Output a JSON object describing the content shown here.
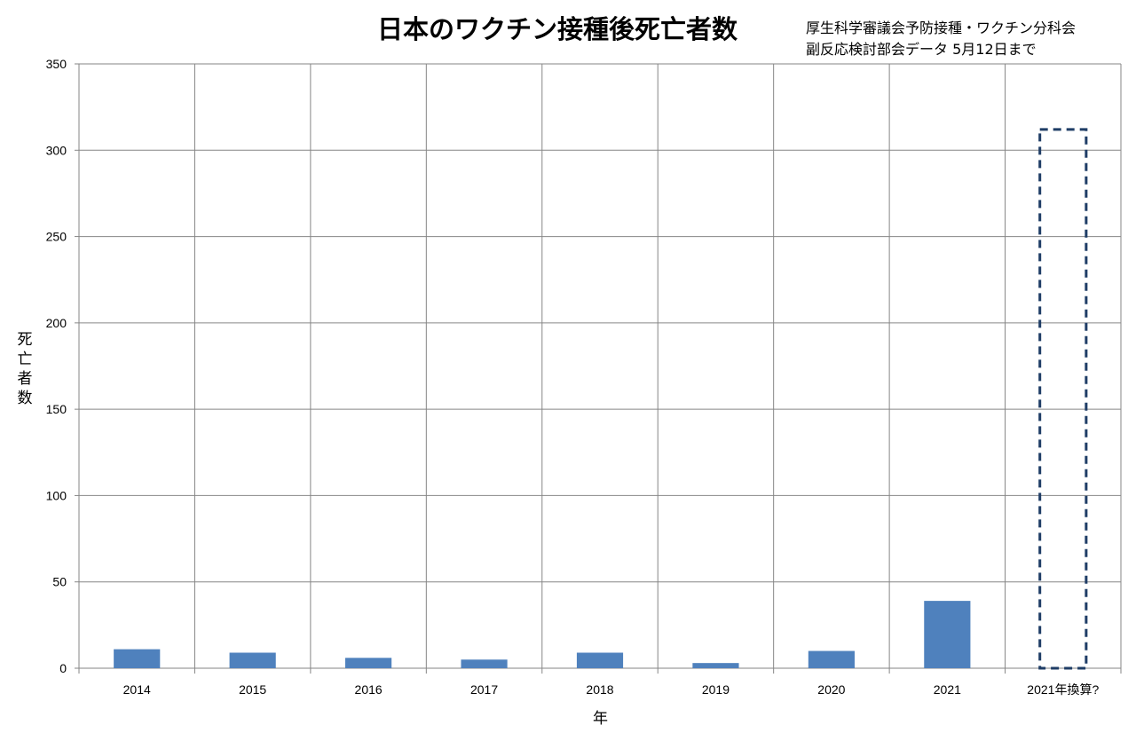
{
  "chart_data": {
    "type": "bar",
    "title": "日本のワクチン接種後死亡者数",
    "annotation_lines": [
      "厚生科学審議会予防接種・ワクチン分科会",
      "副反応検討部会データ 5月12日まで"
    ],
    "xlabel": "年",
    "ylabel": "死亡者数",
    "ylim": [
      0,
      350
    ],
    "yticks": [
      0,
      50,
      100,
      150,
      200,
      250,
      300,
      350
    ],
    "grid": true,
    "categories": [
      "2014",
      "2015",
      "2016",
      "2017",
      "2018",
      "2019",
      "2020",
      "2021",
      "2021年換算?"
    ],
    "values": [
      11,
      9,
      6,
      5,
      9,
      3,
      10,
      39,
      0
    ],
    "projected": {
      "category": "2021年換算?",
      "value": 312,
      "style": "dashed-outline"
    },
    "colors": {
      "bar": "#4f81bd",
      "projected_outline": "#1f3d66",
      "grid": "#868686",
      "axis": "#868686"
    }
  }
}
